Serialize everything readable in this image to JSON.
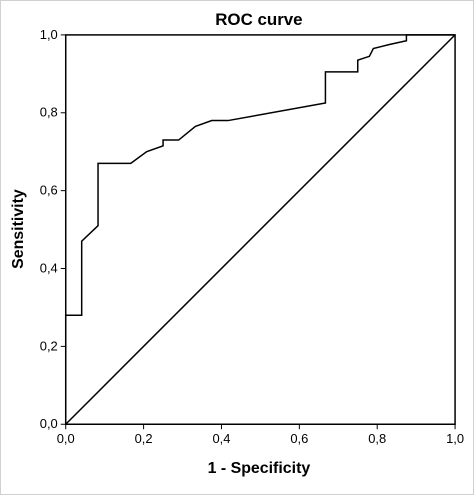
{
  "chart_data": {
    "type": "line",
    "title": "ROC curve",
    "xlabel": "1 - Specificity",
    "ylabel": "Sensitivity",
    "xlim": [
      0,
      1
    ],
    "ylim": [
      0,
      1
    ],
    "grid": false,
    "x_ticks": [
      {
        "value": 0.0,
        "label": "0,0"
      },
      {
        "value": 0.2,
        "label": "0,2"
      },
      {
        "value": 0.4,
        "label": "0,4"
      },
      {
        "value": 0.6,
        "label": "0,6"
      },
      {
        "value": 0.8,
        "label": "0,8"
      },
      {
        "value": 1.0,
        "label": "1,0"
      }
    ],
    "y_ticks": [
      {
        "value": 0.0,
        "label": "0,0"
      },
      {
        "value": 0.2,
        "label": "0,2"
      },
      {
        "value": 0.4,
        "label": "0,4"
      },
      {
        "value": 0.6,
        "label": "0,6"
      },
      {
        "value": 0.8,
        "label": "0,8"
      },
      {
        "value": 1.0,
        "label": "1,0"
      }
    ],
    "series": [
      {
        "stroke": "#000000",
        "points": [
          [
            0.0,
            0.0
          ],
          [
            0.0,
            0.28
          ],
          [
            0.041,
            0.28
          ],
          [
            0.041,
            0.47
          ],
          [
            0.083,
            0.51
          ],
          [
            0.083,
            0.67
          ],
          [
            0.167,
            0.67
          ],
          [
            0.208,
            0.7
          ],
          [
            0.25,
            0.715
          ],
          [
            0.25,
            0.73
          ],
          [
            0.29,
            0.73
          ],
          [
            0.333,
            0.765
          ],
          [
            0.375,
            0.78
          ],
          [
            0.417,
            0.78
          ],
          [
            0.667,
            0.825
          ],
          [
            0.667,
            0.905
          ],
          [
            0.75,
            0.905
          ],
          [
            0.75,
            0.935
          ],
          [
            0.78,
            0.945
          ],
          [
            0.79,
            0.965
          ],
          [
            0.83,
            0.975
          ],
          [
            0.875,
            0.985
          ],
          [
            0.875,
            1.0
          ],
          [
            1.0,
            1.0
          ]
        ]
      },
      {
        "stroke": "#000000",
        "points": [
          [
            0.0,
            0.0
          ],
          [
            1.0,
            1.0
          ]
        ]
      }
    ]
  }
}
